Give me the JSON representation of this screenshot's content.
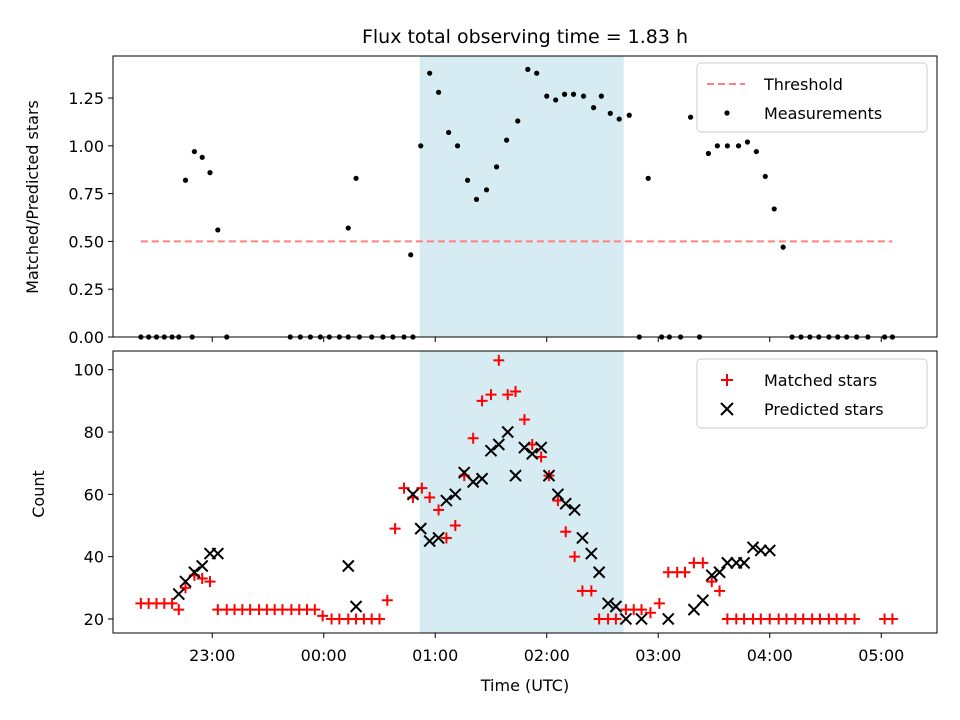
{
  "chart_data": [
    {
      "type": "scatter",
      "title": "Flux total observing time = 1.83 h",
      "xlabel": "",
      "ylabel": "Matched/Predicted stars",
      "xlim_hours": [
        -1.89,
        5.5
      ],
      "ylim": [
        0,
        1.47
      ],
      "yticks": [
        "0.00",
        "0.25",
        "0.50",
        "0.75",
        "1.00",
        "1.25"
      ],
      "xticks_hours": [
        -1,
        0,
        1,
        2,
        3,
        4,
        5
      ],
      "shaded_interval_hours": [
        0.86,
        2.69
      ],
      "shade_color": "#add8e6",
      "threshold": {
        "label": "Threshold",
        "value": 0.5,
        "x_range_hours": [
          -1.64,
          5.1
        ],
        "color": "#ff8080"
      },
      "legend": [
        "Threshold",
        "Measurements"
      ],
      "legend_position": "top-right",
      "series": [
        {
          "name": "Measurements",
          "color": "#000000",
          "x_hours": [
            -1.64,
            -1.57,
            -1.5,
            -1.43,
            -1.36,
            -0.3,
            -0.21,
            -0.12,
            -0.03,
            0.05,
            0.14,
            0.22,
            0.32,
            0.43,
            0.53,
            0.62,
            0.72,
            0.8,
            0.87,
            0.95,
            1.03,
            1.12,
            1.2,
            1.29,
            1.37,
            1.46,
            1.55,
            1.64,
            1.74,
            1.83,
            1.91,
            2.0,
            2.08,
            2.16,
            2.24,
            2.33,
            2.42,
            2.49,
            2.57,
            2.65,
            2.74,
            2.83,
            2.91,
            3.03,
            3.1,
            3.2,
            3.29,
            3.37,
            3.45,
            3.53,
            3.62,
            3.72,
            3.8,
            3.88,
            3.96,
            4.04,
            4.12,
            4.2,
            4.28,
            4.36,
            4.44,
            4.53,
            4.61,
            4.69,
            4.78,
            4.88,
            5.03,
            5.1,
            -1.24,
            -1.16,
            -1.09,
            -1.02,
            -0.95,
            -0.87,
            -1.3,
            -1.18,
            0.22,
            0.29,
            0.78
          ],
          "y": [
            0,
            0,
            0,
            0,
            0,
            0,
            0,
            0,
            0,
            0,
            0,
            0,
            0,
            0,
            0,
            0,
            0,
            0,
            1.0,
            1.38,
            1.28,
            1.07,
            1.0,
            0.82,
            0.72,
            0.77,
            0.89,
            1.03,
            1.13,
            1.4,
            1.38,
            1.26,
            1.24,
            1.27,
            1.27,
            1.26,
            1.2,
            1.26,
            1.17,
            1.14,
            1.16,
            0,
            0.83,
            0,
            0,
            0,
            1.15,
            0,
            0.96,
            1.0,
            1.0,
            1.0,
            1.02,
            0.97,
            0.84,
            0.67,
            0.47,
            0,
            0,
            0,
            0,
            0,
            0,
            0,
            0,
            0,
            0,
            0,
            0.82,
            0.97,
            0.94,
            0.86,
            0.56,
            0,
            0,
            0,
            0.57,
            0.83,
            0.43
          ]
        }
      ]
    },
    {
      "type": "scatter",
      "title": "",
      "xlabel": "Time (UTC)",
      "ylabel": "Count",
      "xlim_hours": [
        -1.89,
        5.5
      ],
      "ylim": [
        15.5,
        106
      ],
      "yticks": [
        "20",
        "40",
        "60",
        "80",
        "100"
      ],
      "xticks_hours": [
        -1,
        0,
        1,
        2,
        3,
        4,
        5
      ],
      "xtick_labels": [
        "23:00",
        "00:00",
        "01:00",
        "02:00",
        "03:00",
        "04:00",
        "05:00"
      ],
      "shaded_interval_hours": [
        0.86,
        2.69
      ],
      "shade_color": "#add8e6",
      "legend": [
        "Matched stars",
        "Predicted stars"
      ],
      "legend_position": "top-right",
      "series": [
        {
          "name": "Matched stars",
          "marker": "plus",
          "color": "#ff0000",
          "x_hours": [
            -1.64,
            -1.57,
            -1.5,
            -1.43,
            -1.36,
            -1.3,
            -1.24,
            -1.16,
            -1.09,
            -1.02,
            -0.95,
            -0.87,
            -0.8,
            -0.73,
            -0.66,
            -0.58,
            -0.51,
            -0.44,
            -0.37,
            -0.29,
            -0.22,
            -0.15,
            -0.08,
            -0.01,
            0.07,
            0.14,
            0.22,
            0.29,
            0.36,
            0.43,
            0.5,
            0.57,
            0.64,
            0.72,
            0.8,
            0.88,
            0.95,
            1.03,
            1.1,
            1.18,
            1.26,
            1.34,
            1.42,
            1.5,
            1.57,
            1.65,
            1.72,
            1.8,
            1.87,
            1.95,
            2.02,
            2.1,
            2.17,
            2.25,
            2.32,
            2.4,
            2.47,
            2.55,
            2.62,
            2.71,
            2.78,
            2.85,
            2.93,
            3.01,
            3.09,
            3.17,
            3.24,
            3.32,
            3.4,
            3.48,
            3.55,
            3.62,
            3.7,
            3.77,
            3.85,
            3.92,
            4.0,
            4.08,
            4.15,
            4.23,
            4.3,
            4.38,
            4.45,
            4.53,
            4.6,
            4.68,
            4.76,
            5.03,
            5.1
          ],
          "y": [
            25,
            25,
            25,
            25,
            25,
            23,
            30,
            34,
            33,
            32,
            23,
            23,
            23,
            23,
            23,
            23,
            23,
            23,
            23,
            23,
            23,
            23,
            23,
            21,
            20,
            20,
            20,
            20,
            20,
            20,
            20,
            26,
            49,
            62,
            59,
            62,
            59,
            55,
            46,
            50,
            66,
            78,
            90,
            92,
            103,
            92,
            93,
            84,
            76,
            72,
            66,
            58,
            48,
            40,
            29,
            29,
            20,
            20,
            20,
            23,
            23,
            23,
            22,
            25,
            35,
            35,
            35,
            38,
            38,
            32,
            29,
            20,
            20,
            20,
            20,
            20,
            20,
            20,
            20,
            20,
            20,
            20,
            20,
            20,
            20,
            20,
            20,
            20,
            20
          ]
        },
        {
          "name": "Predicted stars",
          "marker": "x",
          "color": "#000000",
          "x_hours": [
            -1.3,
            -1.24,
            -1.16,
            -1.09,
            -1.02,
            -0.95,
            0.22,
            0.29,
            0.8,
            0.87,
            0.95,
            1.03,
            1.1,
            1.18,
            1.26,
            1.34,
            1.42,
            1.5,
            1.57,
            1.65,
            1.72,
            1.8,
            1.87,
            1.95,
            2.02,
            2.1,
            2.17,
            2.25,
            2.32,
            2.4,
            2.47,
            2.55,
            2.62,
            2.71,
            2.85,
            3.09,
            3.32,
            3.4,
            3.48,
            3.55,
            3.62,
            3.7,
            3.77,
            3.85,
            3.92,
            4.0
          ],
          "y": [
            28,
            32,
            35,
            37,
            41,
            41,
            37,
            24,
            60,
            49,
            45,
            46,
            58,
            60,
            67,
            64,
            65,
            74,
            76,
            80,
            66,
            75,
            73,
            75,
            66,
            60,
            57,
            55,
            46,
            41,
            35,
            25,
            24,
            20,
            20,
            20,
            23,
            26,
            34,
            35,
            38,
            38,
            38,
            43,
            42,
            42
          ]
        }
      ]
    }
  ]
}
